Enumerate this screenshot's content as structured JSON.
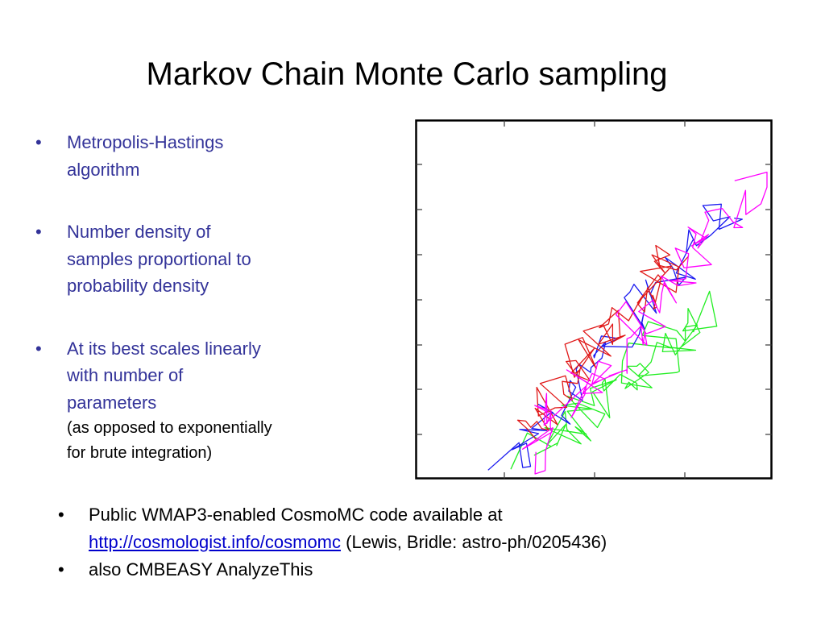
{
  "slide": {
    "title": "Markov Chain Monte Carlo sampling",
    "left_bullets": [
      {
        "lines": [
          "Metropolis-Hastings",
          "algorithm"
        ]
      },
      {
        "lines": [
          "Number density of",
          "samples proportional to",
          "probability density"
        ]
      },
      {
        "lines": [
          "At its best scales linearly",
          "with number of",
          "parameters"
        ],
        "sub": [
          "(as opposed to exponentially",
          "for brute integration)"
        ]
      }
    ],
    "bottom_bullets": {
      "b1_line1": "Public WMAP3-enabled CosmoMC code available at",
      "b1_link": "http://cosmologist.info/cosmomc",
      "b1_rest": " (Lewis, Bridle: astro-ph/0205436)",
      "b2": "also CMBEASY AnalyzeThis"
    },
    "bullet_glyph": "•"
  },
  "colors": {
    "bullet_text": "#333399",
    "chain_blue": "#1a1af0",
    "chain_red": "#e01818",
    "chain_magenta": "#ff00ff",
    "chain_green": "#22ee22"
  }
}
